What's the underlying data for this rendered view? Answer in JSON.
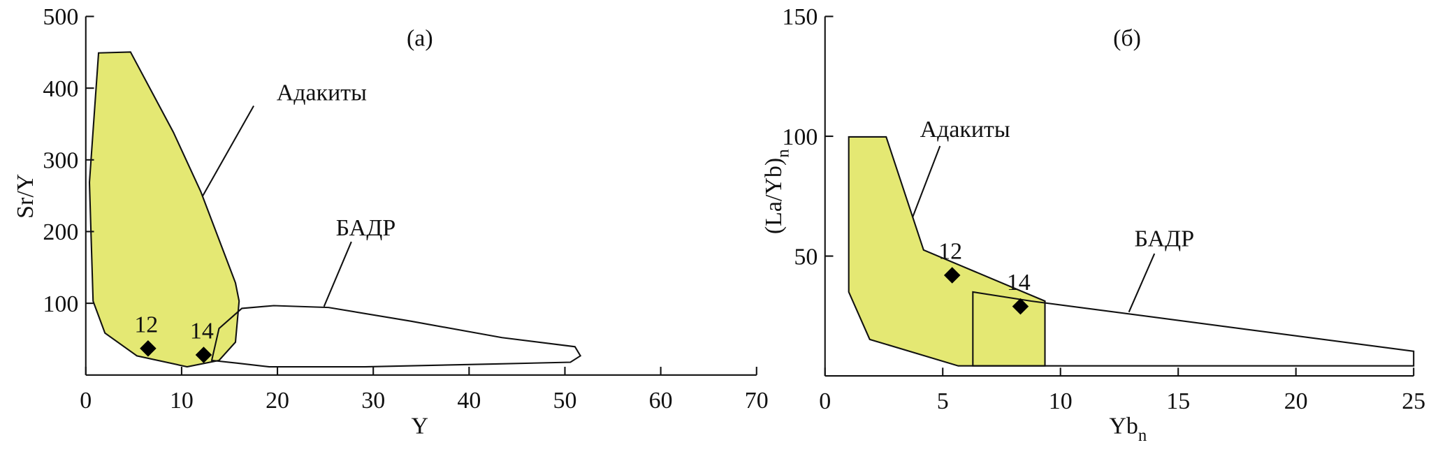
{
  "chart_data": [
    {
      "type": "scatter",
      "panel_label": "(а)",
      "xlabel": "Y",
      "ylabel": "Sr/Y",
      "xlim": [
        0,
        70
      ],
      "xticks": [
        0,
        10,
        20,
        30,
        40,
        50,
        60,
        70
      ],
      "ylim": [
        0,
        500
      ],
      "yticks": [
        100,
        200,
        300,
        400,
        500
      ],
      "x": [
        6.5,
        12.3
      ],
      "values": [
        37,
        28
      ],
      "point_labels": [
        "12",
        "14"
      ],
      "color": "#000000",
      "annotations": [
        "Адакиты",
        "БАДР"
      ]
    },
    {
      "type": "scatter",
      "panel_label": "(б)",
      "xlabel": "Yb",
      "xlabel_sub": "n",
      "ylabel": "(La/Yb)",
      "ylabel_sub": "n",
      "xlim": [
        0,
        25
      ],
      "xticks": [
        0,
        5,
        10,
        15,
        20,
        25
      ],
      "ylim": [
        0,
        150
      ],
      "yticks": [
        50,
        100,
        150
      ],
      "x": [
        5.4,
        8.3
      ],
      "values": [
        42,
        29
      ],
      "point_labels": [
        "12",
        "14"
      ],
      "color": "#000000",
      "annotations": [
        "Адакиты",
        "БАДР"
      ]
    }
  ]
}
